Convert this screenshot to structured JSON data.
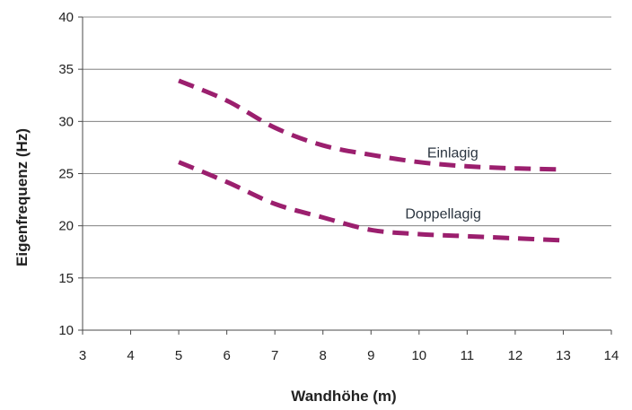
{
  "chart_data": {
    "type": "line",
    "title": "",
    "xlabel": "Wandhöhe (m)",
    "ylabel": "Eigenfrequenz (Hz)",
    "xlim": [
      3,
      14
    ],
    "ylim": [
      10,
      40
    ],
    "xticks": [
      3,
      4,
      5,
      6,
      7,
      8,
      9,
      10,
      11,
      12,
      13,
      14
    ],
    "yticks": [
      10,
      15,
      20,
      25,
      30,
      35,
      40
    ],
    "grid": "horizontal",
    "legend": "inline labels",
    "line_color": "#9b1f6e",
    "line_style": "dashed",
    "series": [
      {
        "name": "Einlagig",
        "x": [
          5,
          6,
          7,
          8,
          9,
          10,
          11,
          12,
          13
        ],
        "y": [
          33.9,
          32.0,
          29.4,
          27.7,
          26.8,
          26.1,
          25.7,
          25.5,
          25.4
        ]
      },
      {
        "name": "Doppellagig",
        "x": [
          5,
          6,
          7,
          8,
          9,
          10,
          11,
          12,
          13
        ],
        "y": [
          26.1,
          24.2,
          22.1,
          20.8,
          19.6,
          19.2,
          19.0,
          18.8,
          18.6
        ]
      }
    ]
  }
}
